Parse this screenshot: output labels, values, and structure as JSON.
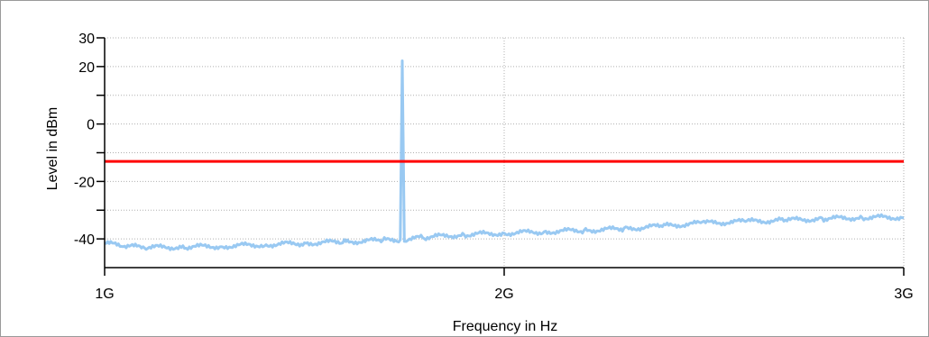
{
  "chart_data": {
    "type": "line",
    "xlabel": "Frequency in Hz",
    "ylabel": "Level in dBm",
    "xlim": [
      1000000000,
      3000000000
    ],
    "ylim": [
      -50,
      30
    ],
    "y_tick_values": [
      -40,
      -30,
      -20,
      -10,
      0,
      10,
      20,
      30
    ],
    "y_tick_labels": [
      "-40",
      "",
      "-20",
      "",
      "0",
      "",
      "20",
      "30"
    ],
    "x_tick_values": [
      1000000000,
      2000000000,
      3000000000
    ],
    "x_tick_labels": [
      "1G",
      "2G",
      "3G"
    ],
    "grid": true,
    "series": [
      {
        "name": "",
        "color": "#99c9f2",
        "x": [
          1000000000,
          1050000000,
          1100000000,
          1200000000,
          1300000000,
          1400000000,
          1500000000,
          1600000000,
          1700000000,
          1740000000,
          1745000000,
          1750000000,
          1755000000,
          1800000000,
          1900000000,
          2000000000,
          2100000000,
          2200000000,
          2300000000,
          2400000000,
          2500000000,
          2600000000,
          2700000000,
          2800000000,
          2900000000,
          3000000000
        ],
        "y": [
          -41.5,
          -42.5,
          -43.0,
          -42.8,
          -42.5,
          -42.0,
          -41.5,
          -41.0,
          -40.5,
          -40.3,
          22.0,
          -40.3,
          -40.2,
          -39.5,
          -38.5,
          -38.0,
          -37.5,
          -37.0,
          -36.5,
          -35.5,
          -34.5,
          -34.0,
          -33.5,
          -33.0,
          -32.5,
          -32.5
        ]
      },
      {
        "name": "",
        "color": "#ff0000",
        "x": [
          1000000000,
          3000000000
        ],
        "y": [
          -13,
          -13
        ]
      }
    ]
  }
}
